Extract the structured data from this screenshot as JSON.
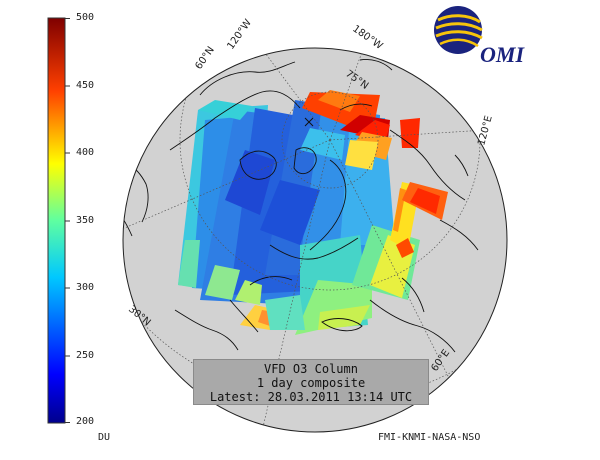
{
  "colorbar": {
    "ticks": [
      "500",
      "450",
      "400",
      "350",
      "300",
      "250",
      "200"
    ],
    "unit": "DU",
    "colors": [
      "#00007f",
      "#0000ff",
      "#007fff",
      "#00ffff",
      "#7fff7f",
      "#ffff00",
      "#ff7f00",
      "#ff0000",
      "#7f0000"
    ]
  },
  "logo": {
    "text": "OMI",
    "colors": [
      "#1a237e",
      "#f6c40b"
    ]
  },
  "info": {
    "line1": "VFD O3 Column",
    "line2": "1 day composite",
    "line3": "Latest: 28.03.2011 13:14 UTC"
  },
  "credit": "FMI-KNMI-NASA-NSO",
  "graticule": {
    "lat_labels": [
      "60°N",
      "30°N",
      "75°N",
      "60°E"
    ],
    "lon_labels": [
      "120°W",
      "180°W",
      "120°E"
    ]
  }
}
